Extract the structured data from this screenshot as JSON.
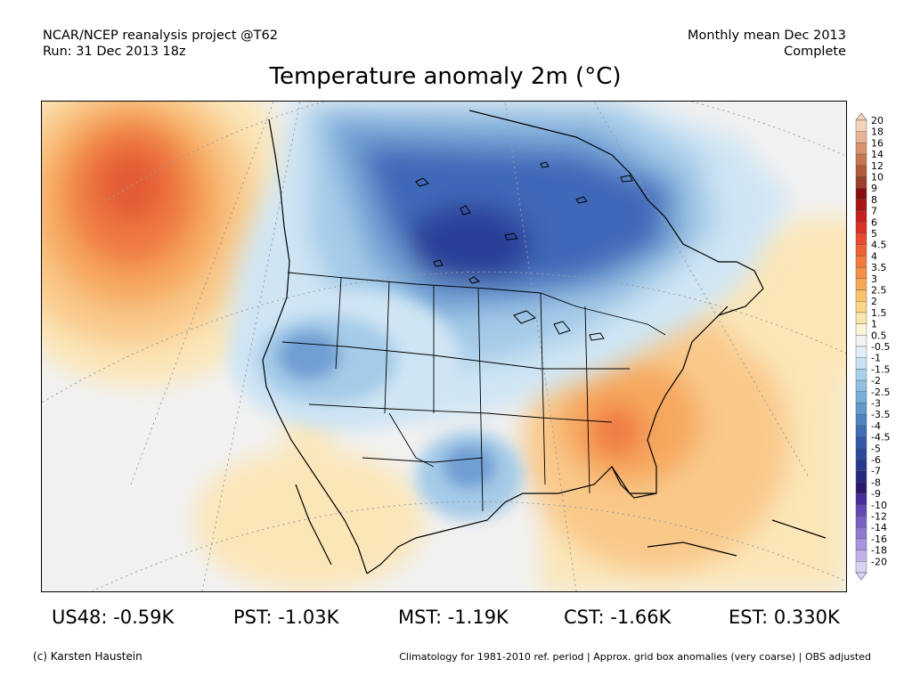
{
  "header": {
    "project": "NCAR/NCEP reanalysis project @T62",
    "run": "Run: 31 Dec 2013 18z",
    "period": "Monthly mean Dec 2013",
    "status": "Complete"
  },
  "title": "Temperature anomaly 2m (°C)",
  "stats": [
    {
      "label": "US48: -0.59K"
    },
    {
      "label": "PST: -1.03K"
    },
    {
      "label": "MST: -1.19K"
    },
    {
      "label": "CST: -1.66K"
    },
    {
      "label": "EST: 0.330K"
    }
  ],
  "footer": {
    "credit": "(c) Karsten Haustein",
    "note": "Climatology for 1981-2010 ref. period | Approx. grid box anomalies (very coarse) | OBS adjusted"
  },
  "legend": {
    "labels": [
      "20",
      "18",
      "16",
      "14",
      "12",
      "10",
      "9",
      "8",
      "7",
      "6",
      "5",
      "4.5",
      "4",
      "3.5",
      "3",
      "2.5",
      "2",
      "1.5",
      "1",
      "0.5",
      "-0.5",
      "-1",
      "-1.5",
      "-2",
      "-2.5",
      "-3",
      "-3.5",
      "-4",
      "-4.5",
      "-5",
      "-6",
      "-7",
      "-8",
      "-9",
      "-10",
      "-12",
      "-14",
      "-16",
      "-18",
      "-20"
    ],
    "colors": [
      "#f5d3bb",
      "#e8b395",
      "#d89470",
      "#c77653",
      "#b25a3e",
      "#9c3f2c",
      "#8b0f0f",
      "#aa1515",
      "#c61f1f",
      "#dc2f26",
      "#e84a2f",
      "#ef6035",
      "#f37a3d",
      "#f69045",
      "#f8a954",
      "#fac06a",
      "#fbd688",
      "#f9e6ab",
      "#fdf4d8",
      "#f3f3f3",
      "#e1eef8",
      "#c8e2f3",
      "#a9d0eb",
      "#8fc0e2",
      "#78afd8",
      "#6499cd",
      "#4f83c1",
      "#3f6db6",
      "#3459a9",
      "#2c4a9e",
      "#26398f",
      "#23287a",
      "#2a1a6b",
      "#4a2c9b",
      "#6447b4",
      "#7b5fc4",
      "#9277d0",
      "#a993dc",
      "#c1b2e8",
      "#d9d1f3"
    ],
    "unit_step": "°C"
  },
  "map": {
    "field": "Temperature anomaly 2m",
    "region": "North America",
    "palette": {
      "ocean_neutral": "#f1f1f1",
      "warm_1": "#fbe6b8",
      "warm_2": "#f9c98a",
      "warm_3": "#f6a85f",
      "warm_4": "#ef7a43",
      "warm_5": "#e35b34",
      "cold_1": "#cfe5f4",
      "cold_2": "#a4cbe8",
      "cold_3": "#6f9fd3",
      "cold_4": "#3f68b8",
      "cold_5": "#2a3f98"
    }
  }
}
